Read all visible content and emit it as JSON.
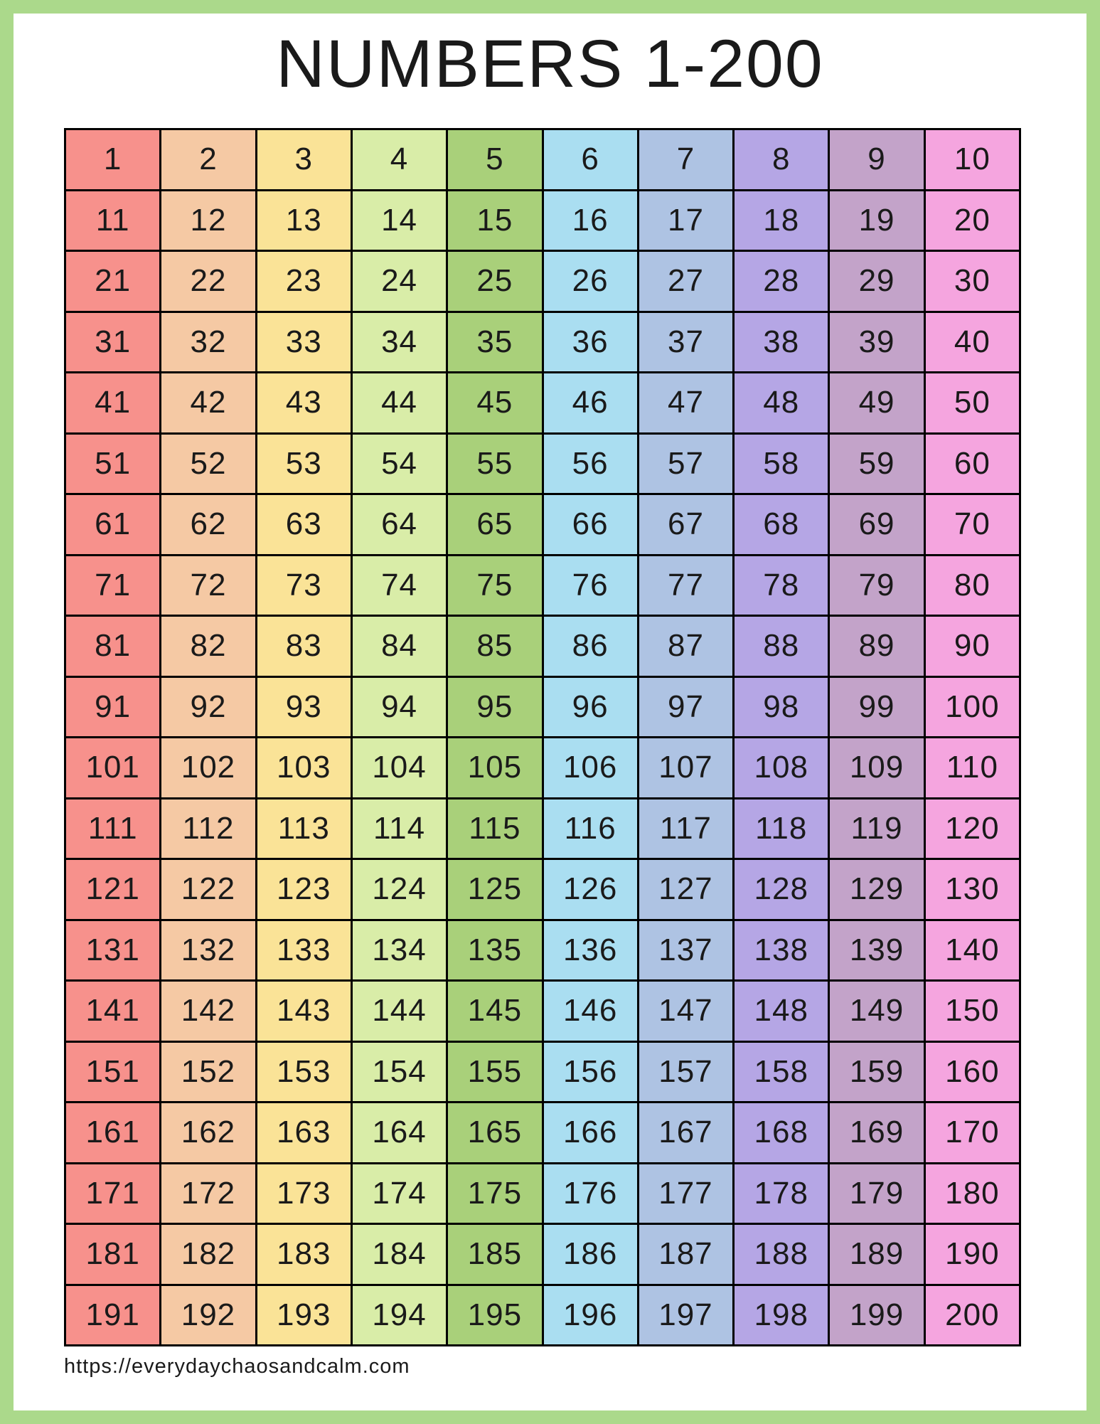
{
  "page": {
    "title": "NUMBERS 1-200",
    "footer_url": "https://everydaychaosandcalm.com"
  },
  "colors": {
    "page_background": "#ffffff",
    "page_border": "#abd98b",
    "grid_line": "#000000",
    "text": "#1a1a1a",
    "column_colors": [
      "#f7918c",
      "#f5c9a4",
      "#fae397",
      "#d9eda8",
      "#a9d07a",
      "#aadef1",
      "#aec3e3",
      "#b5a6e5",
      "#c3a3c9",
      "#f5a5df"
    ]
  },
  "grid": {
    "rows": 20,
    "columns": 10,
    "numbers": [
      1,
      2,
      3,
      4,
      5,
      6,
      7,
      8,
      9,
      10,
      11,
      12,
      13,
      14,
      15,
      16,
      17,
      18,
      19,
      20,
      21,
      22,
      23,
      24,
      25,
      26,
      27,
      28,
      29,
      30,
      31,
      32,
      33,
      34,
      35,
      36,
      37,
      38,
      39,
      40,
      41,
      42,
      43,
      44,
      45,
      46,
      47,
      48,
      49,
      50,
      51,
      52,
      53,
      54,
      55,
      56,
      57,
      58,
      59,
      60,
      61,
      62,
      63,
      64,
      65,
      66,
      67,
      68,
      69,
      70,
      71,
      72,
      73,
      74,
      75,
      76,
      77,
      78,
      79,
      80,
      81,
      82,
      83,
      84,
      85,
      86,
      87,
      88,
      89,
      90,
      91,
      92,
      93,
      94,
      95,
      96,
      97,
      98,
      99,
      100,
      101,
      102,
      103,
      104,
      105,
      106,
      107,
      108,
      109,
      110,
      111,
      112,
      113,
      114,
      115,
      116,
      117,
      118,
      119,
      120,
      121,
      122,
      123,
      124,
      125,
      126,
      127,
      128,
      129,
      130,
      131,
      132,
      133,
      134,
      135,
      136,
      137,
      138,
      139,
      140,
      141,
      142,
      143,
      144,
      145,
      146,
      147,
      148,
      149,
      150,
      151,
      152,
      153,
      154,
      155,
      156,
      157,
      158,
      159,
      160,
      161,
      162,
      163,
      164,
      165,
      166,
      167,
      168,
      169,
      170,
      171,
      172,
      173,
      174,
      175,
      176,
      177,
      178,
      179,
      180,
      181,
      182,
      183,
      184,
      185,
      186,
      187,
      188,
      189,
      190,
      191,
      192,
      193,
      194,
      195,
      196,
      197,
      198,
      199,
      200
    ]
  }
}
